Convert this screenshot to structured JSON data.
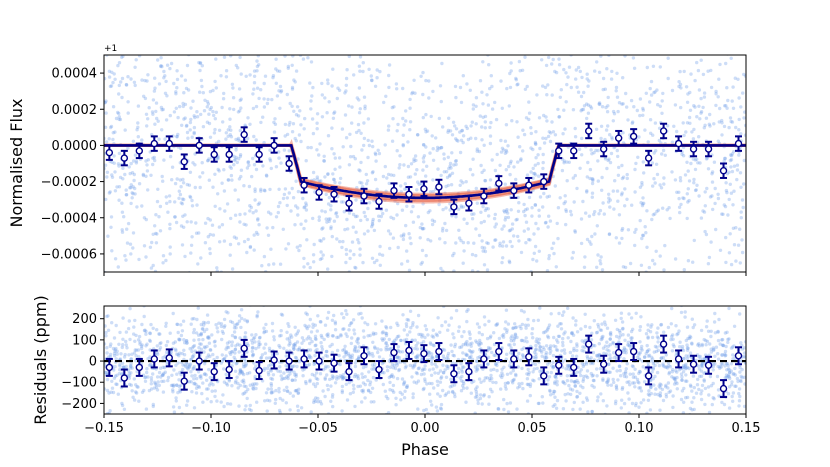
{
  "chart_data": [
    {
      "type": "scatter",
      "panel": "top",
      "ylabel": "Normalised Flux",
      "y_offset_label": "+1",
      "xlim": [
        -0.15,
        0.15
      ],
      "ylim": [
        -0.0007,
        0.0005
      ],
      "x_ticks": [
        -0.15,
        -0.1,
        -0.05,
        0.0,
        0.05,
        0.1,
        0.15
      ],
      "y_ticks": [
        0.0004,
        0.0002,
        0.0,
        -0.0002,
        -0.0004,
        -0.0006
      ],
      "y_tick_labels": [
        "0.0004",
        "0.0002",
        "0.0000",
        "−0.0002",
        "−0.0004",
        "−0.0006"
      ],
      "transit_model": {
        "ingress_start": -0.0625,
        "ingress_end": -0.058,
        "egress_start": 0.058,
        "egress_end": 0.0625,
        "depth_center": -0.00029,
        "depth_edge": -0.0002,
        "color": "#00008b",
        "band_color": "#e8664a"
      },
      "binned": {
        "x": [
          -0.1475,
          -0.1405,
          -0.1335,
          -0.1265,
          -0.1195,
          -0.1125,
          -0.1055,
          -0.0985,
          -0.0915,
          -0.0845,
          -0.0775,
          -0.0705,
          -0.0635,
          -0.0565,
          -0.0495,
          -0.0425,
          -0.0355,
          -0.0285,
          -0.0215,
          -0.0145,
          -0.0075,
          -0.0005,
          0.0065,
          0.0135,
          0.0205,
          0.0275,
          0.0345,
          0.0415,
          0.0485,
          0.0555,
          0.0625,
          0.0695,
          0.0765,
          0.0835,
          0.0905,
          0.0975,
          0.1045,
          0.1115,
          0.1185,
          0.1255,
          0.1325,
          0.1395,
          0.1465
        ],
        "y": [
          -4e-05,
          -7e-05,
          -3e-05,
          1e-05,
          1e-05,
          -9e-05,
          0.0,
          -5e-05,
          -5e-05,
          6e-05,
          -5e-05,
          0.0,
          -0.0001,
          -0.00022,
          -0.00026,
          -0.00027,
          -0.00032,
          -0.00028,
          -0.00031,
          -0.00025,
          -0.00027,
          -0.00024,
          -0.00023,
          -0.00034,
          -0.00032,
          -0.00028,
          -0.00021,
          -0.00025,
          -0.00022,
          -0.0002,
          -3e-05,
          -3e-05,
          8e-05,
          -2e-05,
          4e-05,
          5e-05,
          -7e-05,
          8e-05,
          1e-05,
          -2e-05,
          -2e-05,
          -0.00014,
          1e-05
        ],
        "yerr": 4e-05,
        "marker_color": "#00008b"
      },
      "raw_points_color": "#6f9ee8"
    },
    {
      "type": "scatter",
      "panel": "bottom",
      "xlabel": "Phase",
      "ylabel": "Residuals (ppm)",
      "xlim": [
        -0.15,
        0.15
      ],
      "ylim": [
        -250,
        260
      ],
      "x_ticks": [
        -0.15,
        -0.1,
        -0.05,
        0.0,
        0.05,
        0.1,
        0.15
      ],
      "x_tick_labels": [
        "−0.15",
        "−0.10",
        "−0.05",
        "0.00",
        "0.05",
        "0.10",
        "0.15"
      ],
      "y_ticks": [
        200,
        100,
        0,
        -100,
        -200
      ],
      "y_tick_labels": [
        "200",
        "100",
        "0",
        "−100",
        "−200"
      ],
      "zero_line": {
        "y": 0,
        "style": "dashed",
        "color": "#000000"
      },
      "binned": {
        "x": [
          -0.1475,
          -0.1405,
          -0.1335,
          -0.1265,
          -0.1195,
          -0.1125,
          -0.1055,
          -0.0985,
          -0.0915,
          -0.0845,
          -0.0775,
          -0.0705,
          -0.0635,
          -0.0565,
          -0.0495,
          -0.0425,
          -0.0355,
          -0.0285,
          -0.0215,
          -0.0145,
          -0.0075,
          -0.0005,
          0.0065,
          0.0135,
          0.0205,
          0.0275,
          0.0345,
          0.0415,
          0.0485,
          0.0555,
          0.0625,
          0.0695,
          0.0765,
          0.0835,
          0.0905,
          0.0975,
          0.1045,
          0.1115,
          0.1185,
          0.1255,
          0.1325,
          0.1395,
          0.1465
        ],
        "y": [
          -30,
          -80,
          -30,
          10,
          15,
          -95,
          0,
          -50,
          -40,
          60,
          -45,
          5,
          0,
          10,
          0,
          -10,
          -50,
          25,
          -40,
          40,
          50,
          35,
          45,
          -60,
          -50,
          10,
          45,
          10,
          20,
          -70,
          -20,
          -30,
          80,
          -15,
          40,
          45,
          -70,
          80,
          10,
          -15,
          -20,
          -130,
          25
        ],
        "yerr": 40,
        "marker_color": "#00008b"
      },
      "raw_points_color": "#6f9ee8"
    }
  ]
}
